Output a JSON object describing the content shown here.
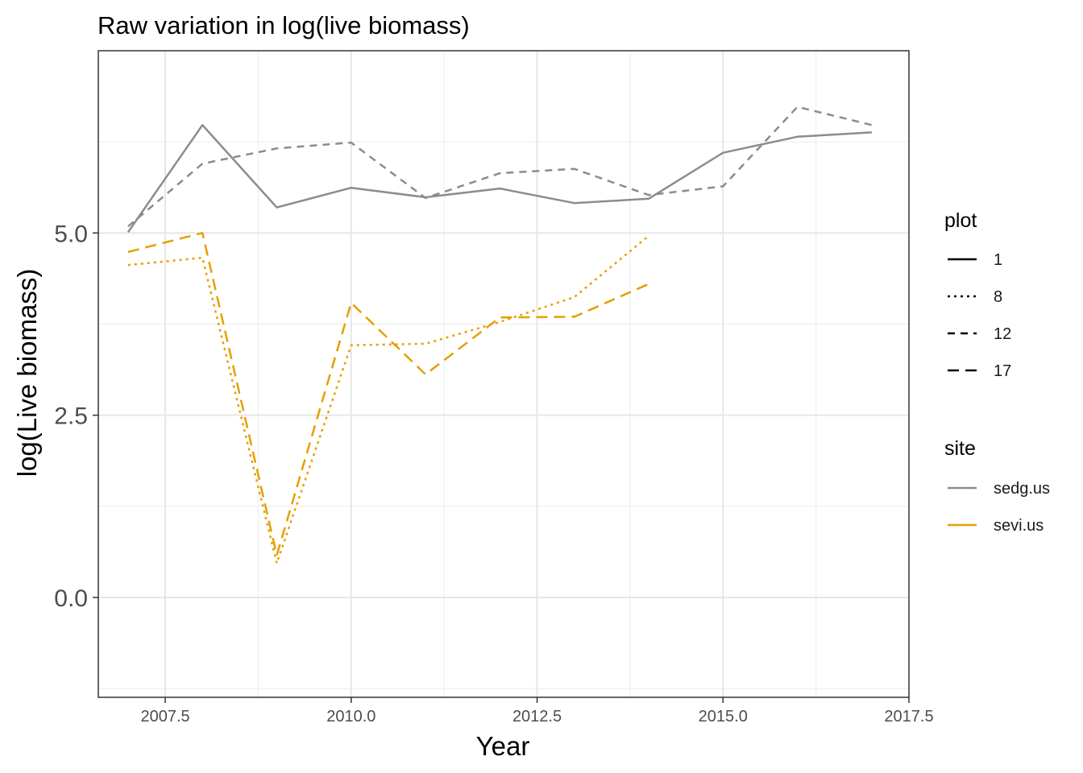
{
  "chart_data": {
    "type": "line",
    "title": "Raw variation in log(live biomass)",
    "xlabel": "Year",
    "ylabel": "log(Live biomass)",
    "xlim": [
      2006.6,
      2017.5
    ],
    "ylim": [
      -1.37,
      7.5
    ],
    "x_ticks": [
      2007.5,
      2010.0,
      2012.5,
      2015.0,
      2017.5
    ],
    "x_tick_labels": [
      "2007.5",
      "2010.0",
      "2012.5",
      "2015.0",
      "2017.5"
    ],
    "y_ticks": [
      0.0,
      2.5,
      5.0
    ],
    "y_tick_labels": [
      "0.0",
      "2.5",
      "5.0"
    ],
    "grid": true,
    "legend_placement": "right",
    "legends": {
      "plot": {
        "title": "plot",
        "entries": [
          {
            "label": "1",
            "linetype": "solid"
          },
          {
            "label": "8",
            "linetype": "dotted"
          },
          {
            "label": "12",
            "linetype": "dashed"
          },
          {
            "label": "17",
            "linetype": "longdash"
          }
        ]
      },
      "site": {
        "title": "site",
        "entries": [
          {
            "label": "sedg.us",
            "color": "#8c8c8c"
          },
          {
            "label": "sevi.us",
            "color": "#e69f00"
          }
        ]
      }
    },
    "series": [
      {
        "site": "sedg.us",
        "plot": "1",
        "x": [
          2007,
          2008,
          2009,
          2010,
          2011,
          2012,
          2013,
          2014,
          2015,
          2016,
          2017
        ],
        "y": [
          5.01,
          6.48,
          5.35,
          5.62,
          5.49,
          5.61,
          5.41,
          5.47,
          6.1,
          6.32,
          6.38
        ]
      },
      {
        "site": "sedg.us",
        "plot": "12",
        "x": [
          2007,
          2008,
          2009,
          2010,
          2011,
          2012,
          2013,
          2014,
          2015,
          2016,
          2017
        ],
        "y": [
          5.09,
          5.95,
          6.16,
          6.24,
          5.48,
          5.82,
          5.88,
          5.52,
          5.64,
          6.73,
          6.48
        ]
      },
      {
        "site": "sevi.us",
        "plot": "8",
        "x": [
          2007,
          2008,
          2009,
          2010,
          2011,
          2012,
          2013,
          2014
        ],
        "y": [
          4.56,
          4.66,
          0.47,
          3.46,
          3.48,
          3.78,
          4.12,
          4.96
        ]
      },
      {
        "site": "sevi.us",
        "plot": "17",
        "x": [
          2007,
          2008,
          2009,
          2010,
          2011,
          2012,
          2013,
          2014
        ],
        "y": [
          4.74,
          5.0,
          0.58,
          4.04,
          3.06,
          3.84,
          3.85,
          4.3
        ]
      }
    ]
  }
}
